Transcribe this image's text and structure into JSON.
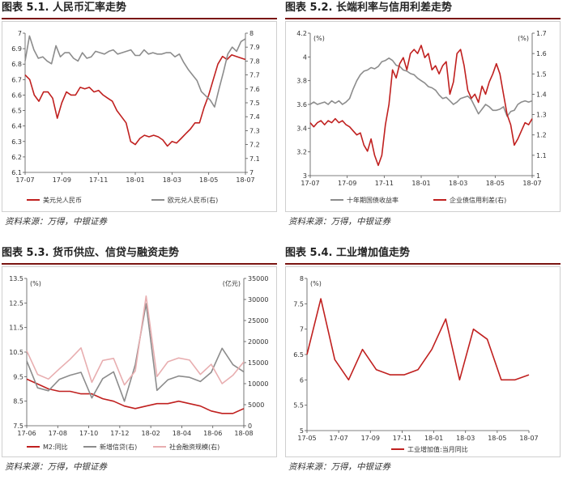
{
  "colors": {
    "red": "#c0201f",
    "gray": "#8c8c8c",
    "pink": "#e8aeb0",
    "title_rule": "#7a1512"
  },
  "panels": [
    {
      "title": "图表 5.1. 人民币汇率走势",
      "source": "资料来源：万得，中银证券"
    },
    {
      "title": "图表 5.2. 长端利率与信用利差走势",
      "source": "资料来源：万得，中银证券"
    },
    {
      "title": "图表 5.3. 货币供应、信贷与融资走势",
      "source": "资料来源：万得，中银证券"
    },
    {
      "title": "图表 5.4. 工业增加值走势",
      "source": "资料来源：万得，中银证券"
    }
  ],
  "chart_data": [
    {
      "type": "line",
      "x_ticks": [
        "17-07",
        "17-09",
        "17-11",
        "18-01",
        "18-03",
        "18-05",
        "18-07"
      ],
      "y_left_ticks": [
        "6.1",
        "6.2",
        "6.3",
        "6.4",
        "6.5",
        "6.6",
        "6.7",
        "6.8",
        "6.9",
        "7"
      ],
      "y_right_ticks": [
        "7",
        "7.1",
        "7.2",
        "7.3",
        "7.4",
        "7.5",
        "7.6",
        "7.7",
        "7.8",
        "7.9",
        "8"
      ],
      "ylim_left": [
        6.1,
        7.0
      ],
      "ylim_right": [
        7.0,
        8.0
      ],
      "unit_left": "",
      "unit_right": "",
      "series": [
        {
          "name": "美元兑人民币",
          "axis": "left",
          "color": "red",
          "values": [
            6.73,
            6.7,
            6.6,
            6.56,
            6.62,
            6.62,
            6.58,
            6.45,
            6.55,
            6.62,
            6.6,
            6.6,
            6.65,
            6.64,
            6.65,
            6.62,
            6.63,
            6.6,
            6.58,
            6.56,
            6.5,
            6.46,
            6.42,
            6.3,
            6.28,
            6.32,
            6.34,
            6.33,
            6.34,
            6.33,
            6.31,
            6.27,
            6.3,
            6.29,
            6.32,
            6.35,
            6.38,
            6.42,
            6.42,
            6.52,
            6.6,
            6.7,
            6.8,
            6.85,
            6.83,
            6.86,
            6.85,
            6.84,
            6.83
          ]
        },
        {
          "name": "欧元兑人民币(右)",
          "axis": "right",
          "color": "gray",
          "values": [
            7.8,
            7.98,
            7.88,
            7.82,
            7.83,
            7.8,
            7.78,
            7.91,
            7.83,
            7.86,
            7.86,
            7.82,
            7.8,
            7.86,
            7.82,
            7.83,
            7.87,
            7.86,
            7.85,
            7.87,
            7.88,
            7.85,
            7.86,
            7.87,
            7.88,
            7.84,
            7.84,
            7.88,
            7.85,
            7.86,
            7.85,
            7.85,
            7.86,
            7.86,
            7.83,
            7.85,
            7.79,
            7.74,
            7.7,
            7.66,
            7.58,
            7.55,
            7.52,
            7.47,
            7.6,
            7.72,
            7.85,
            7.9,
            7.87,
            7.94,
            7.96
          ]
        }
      ]
    },
    {
      "type": "line",
      "x_ticks": [
        "17-07",
        "17-09",
        "17-11",
        "18-01",
        "18-03",
        "18-05",
        "18-07"
      ],
      "y_left_ticks": [
        "3",
        "3.2",
        "3.4",
        "3.6",
        "3.8",
        "4",
        "4.2"
      ],
      "y_right_ticks": [
        "1",
        "1.1",
        "1.2",
        "1.3",
        "1.4",
        "1.5",
        "1.6",
        "1.7"
      ],
      "ylim_left": [
        3.0,
        4.2
      ],
      "ylim_right": [
        1.0,
        1.7
      ],
      "unit_left": "(%)",
      "unit_right": "(%)",
      "series": [
        {
          "name": "十年期国债收益率",
          "axis": "left",
          "color": "gray",
          "values": [
            3.6,
            3.62,
            3.6,
            3.61,
            3.62,
            3.6,
            3.63,
            3.61,
            3.63,
            3.6,
            3.62,
            3.65,
            3.73,
            3.8,
            3.85,
            3.88,
            3.89,
            3.91,
            3.9,
            3.92,
            3.96,
            3.97,
            3.99,
            3.97,
            3.93,
            3.92,
            3.89,
            3.88,
            3.86,
            3.85,
            3.82,
            3.8,
            3.78,
            3.75,
            3.74,
            3.72,
            3.68,
            3.65,
            3.66,
            3.63,
            3.6,
            3.62,
            3.65,
            3.66,
            3.67,
            3.64,
            3.58,
            3.52,
            3.56,
            3.6,
            3.58,
            3.55,
            3.55,
            3.56,
            3.58,
            3.5,
            3.54,
            3.55,
            3.6,
            3.62,
            3.63,
            3.62,
            3.63
          ]
        },
        {
          "name": "企业债信用利差(右)",
          "axis": "right",
          "color": "red",
          "values": [
            1.26,
            1.24,
            1.26,
            1.27,
            1.25,
            1.27,
            1.26,
            1.28,
            1.26,
            1.27,
            1.25,
            1.24,
            1.22,
            1.2,
            1.21,
            1.15,
            1.12,
            1.18,
            1.1,
            1.05,
            1.1,
            1.25,
            1.35,
            1.52,
            1.48,
            1.55,
            1.58,
            1.52,
            1.6,
            1.62,
            1.6,
            1.64,
            1.58,
            1.6,
            1.52,
            1.54,
            1.5,
            1.54,
            1.56,
            1.4,
            1.46,
            1.6,
            1.62,
            1.54,
            1.42,
            1.38,
            1.4,
            1.36,
            1.44,
            1.4,
            1.46,
            1.5,
            1.55,
            1.5,
            1.4,
            1.3,
            1.25,
            1.15,
            1.18,
            1.22,
            1.26,
            1.25,
            1.28
          ]
        }
      ]
    },
    {
      "type": "line",
      "x_ticks": [
        "17-06",
        "17-08",
        "17-10",
        "17-12",
        "18-02",
        "18-04",
        "18-06",
        "18-08"
      ],
      "y_left_ticks": [
        "7.5",
        "8.5",
        "9.5",
        "10.5",
        "11.5",
        "12.5",
        "13.5"
      ],
      "y_right_ticks": [
        "0",
        "5000",
        "10000",
        "15000",
        "20000",
        "25000",
        "30000",
        "35000"
      ],
      "ylim_left": [
        7.5,
        13.5
      ],
      "ylim_right": [
        0,
        35000
      ],
      "unit_left": "(%)",
      "unit_right": "(亿元)",
      "series": [
        {
          "name": "M2:同比",
          "axis": "left",
          "color": "red",
          "values": [
            9.4,
            9.2,
            9.0,
            8.9,
            8.9,
            8.8,
            8.8,
            8.6,
            8.5,
            8.3,
            8.2,
            8.3,
            8.4,
            8.4,
            8.5,
            8.4,
            8.3,
            8.1,
            8.0,
            8.0,
            8.2
          ]
        },
        {
          "name": "新增信贷(右)",
          "axis": "right",
          "color": "gray",
          "values": [
            15400,
            9000,
            8300,
            11000,
            12000,
            12700,
            6600,
            11200,
            12800,
            5800,
            14500,
            29000,
            8400,
            10900,
            11800,
            11500,
            10500,
            12700,
            18400,
            14500,
            12800
          ]
        },
        {
          "name": "社会融资规模(右)",
          "axis": "right",
          "color": "pink",
          "values": [
            17800,
            12200,
            11100,
            13500,
            15800,
            18500,
            10300,
            15500,
            16000,
            9700,
            13000,
            30800,
            11700,
            15200,
            16100,
            15600,
            12200,
            14600,
            10000,
            12000,
            15200
          ]
        }
      ]
    },
    {
      "type": "line",
      "x_ticks": [
        "17-05",
        "17-07",
        "17-09",
        "17-11",
        "18-01",
        "18-03",
        "18-05",
        "18-07"
      ],
      "y_left_ticks": [
        "5",
        "5.5",
        "6",
        "6.5",
        "7",
        "7.5",
        "8"
      ],
      "ylim_left": [
        5.0,
        8.0
      ],
      "unit_left": "(%)",
      "series": [
        {
          "name": "工业增加值:当月同比",
          "axis": "left",
          "color": "red",
          "values": [
            6.5,
            7.6,
            6.4,
            6.0,
            6.6,
            6.2,
            6.1,
            6.1,
            6.2,
            6.6,
            7.2,
            6.0,
            7.0,
            6.8,
            6.0,
            6.0,
            6.1
          ]
        }
      ]
    }
  ]
}
